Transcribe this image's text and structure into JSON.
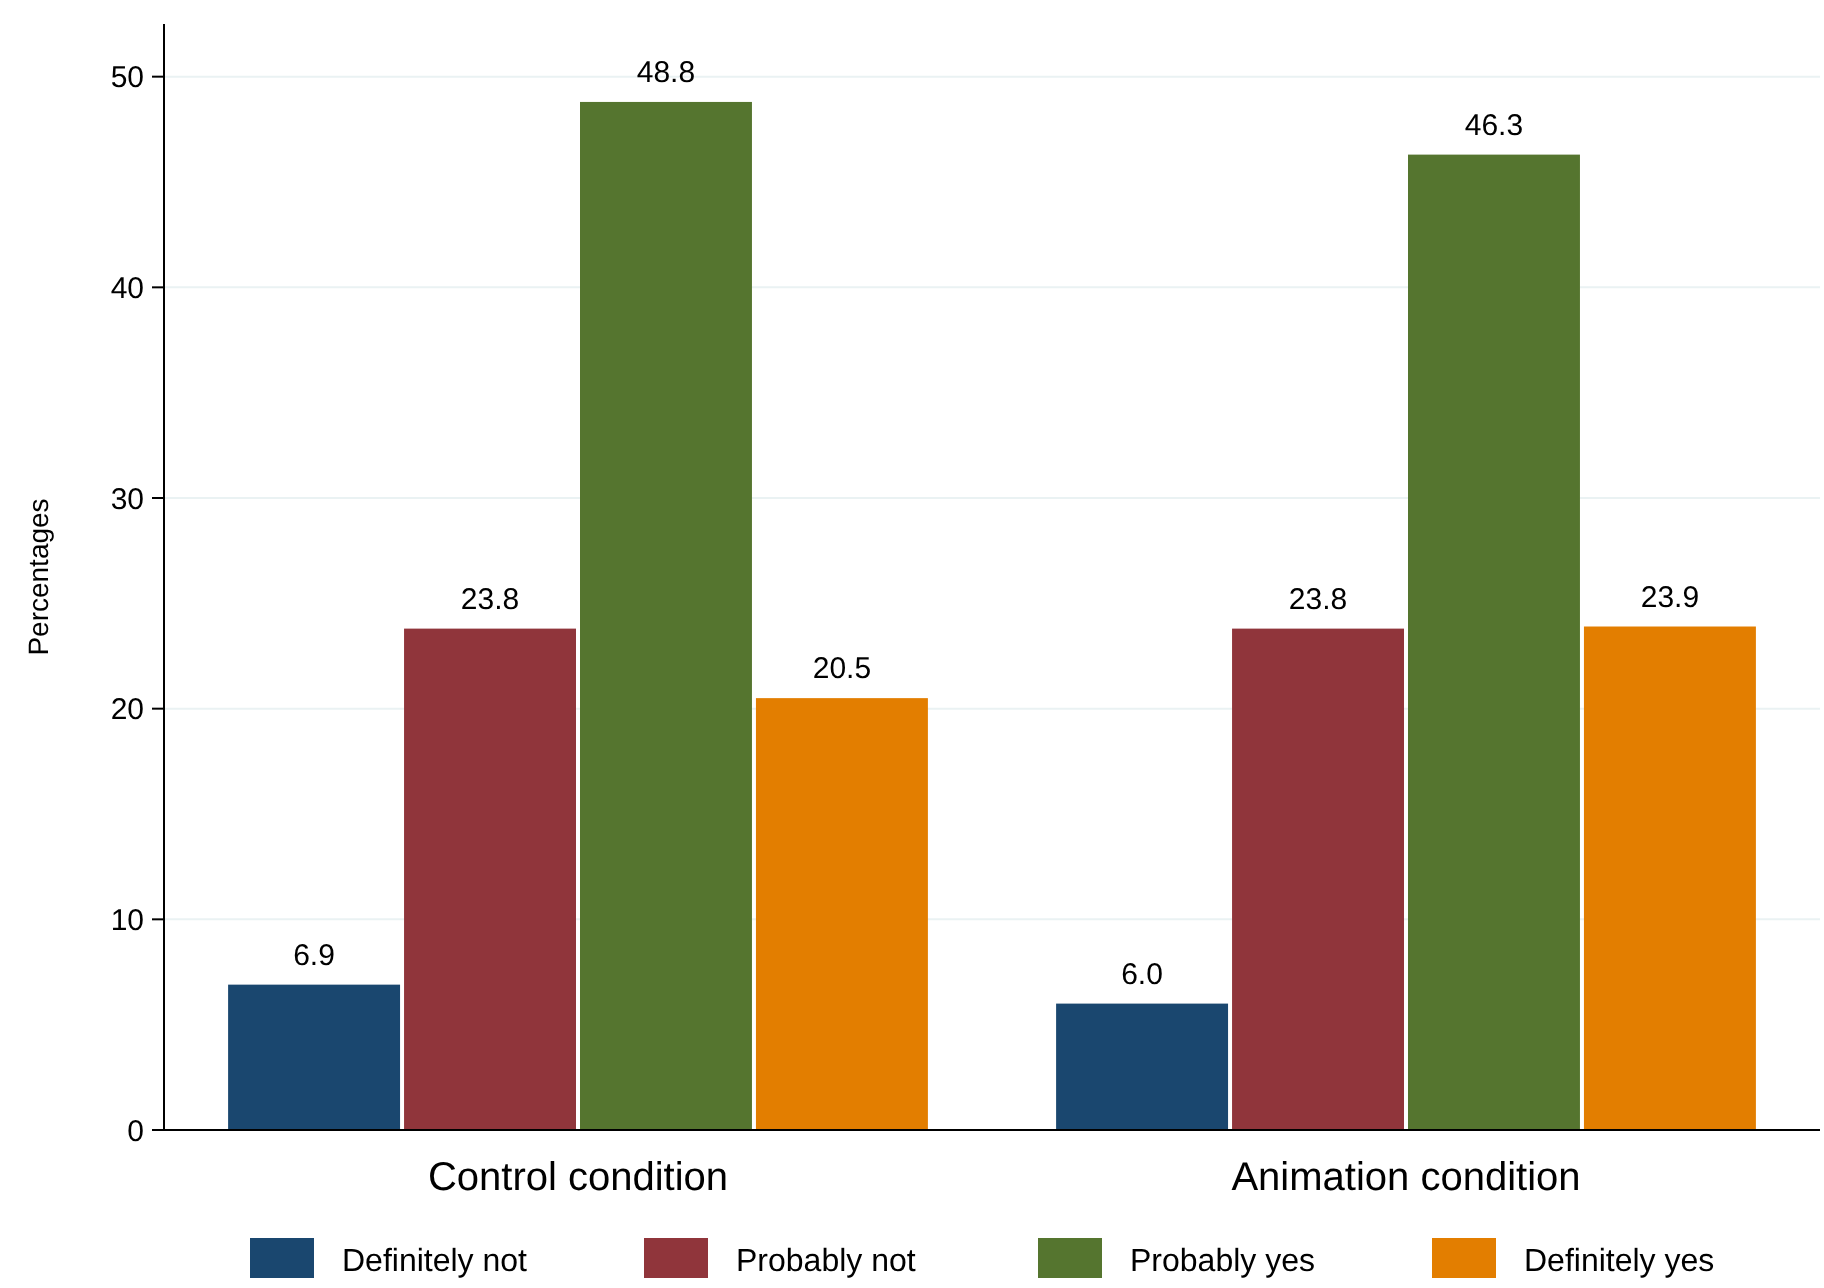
{
  "chart_data": {
    "type": "bar",
    "ylabel": "Percentages",
    "categories": [
      "Control condition",
      "Animation condition"
    ],
    "series": [
      {
        "name": "Definitely not",
        "color": "#1a476f",
        "values": [
          6.9,
          6.0
        ],
        "value_labels": [
          "6.9",
          "6.0"
        ]
      },
      {
        "name": "Probably not",
        "color": "#90353b",
        "values": [
          23.8,
          23.8
        ],
        "value_labels": [
          "23.8",
          "23.8"
        ]
      },
      {
        "name": "Probably yes",
        "color": "#55752f",
        "values": [
          48.8,
          46.3
        ],
        "value_labels": [
          "48.8",
          "46.3"
        ]
      },
      {
        "name": "Definitely yes",
        "color": "#e37e00",
        "values": [
          20.5,
          23.9
        ],
        "value_labels": [
          "20.5",
          "23.9"
        ]
      }
    ],
    "ylim": [
      0,
      52.5
    ],
    "yticks": [
      0,
      10,
      20,
      30,
      40,
      50
    ],
    "grid": "y",
    "legend": "bottom"
  }
}
